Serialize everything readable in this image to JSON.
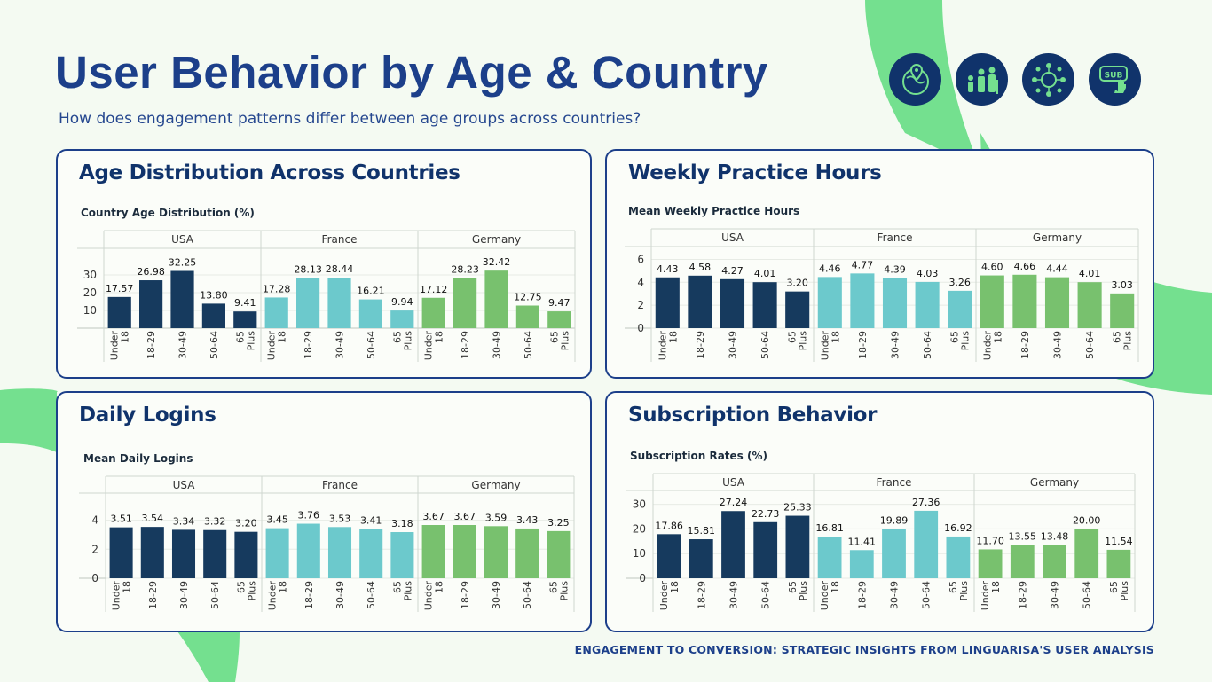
{
  "header": {
    "title": "User Behavior by Age & Country",
    "subtitle": "How does engagement patterns differ between age groups across countries?"
  },
  "icons": [
    "globe-location-icon",
    "family-age-icon",
    "global-network-icon",
    "subscribe-click-icon"
  ],
  "icon_labels": {
    "subscribe": "SUB"
  },
  "footer": "ENGAGEMENT TO CONVERSION: STRATEGIC INSIGHTS FROM LINGUARISA'S USER ANALYSIS",
  "colors": {
    "usa": "#163a5e",
    "france": "#6cc9cc",
    "germany": "#78c16e",
    "accent": "#1c3f8a",
    "decor": "#74e08f"
  },
  "panels": {
    "age": {
      "heading": "Age Distribution Across Countries"
    },
    "practice": {
      "heading": "Weekly Practice Hours"
    },
    "logins": {
      "heading": "Daily Logins"
    },
    "subs": {
      "heading": "Subscription Behavior"
    }
  },
  "chart_data": [
    {
      "id": "age",
      "type": "bar",
      "title": "Country Age Distribution (%)",
      "groups": [
        "USA",
        "France",
        "Germany"
      ],
      "categories": [
        [
          "Under",
          "18"
        ],
        [
          "18-29"
        ],
        [
          "30-49"
        ],
        [
          "50-64"
        ],
        [
          "65",
          "Plus"
        ]
      ],
      "series": [
        {
          "name": "USA",
          "values": [
            17.57,
            26.98,
            32.25,
            13.8,
            9.41
          ]
        },
        {
          "name": "France",
          "values": [
            17.28,
            28.13,
            28.44,
            16.21,
            9.94
          ]
        },
        {
          "name": "Germany",
          "values": [
            17.12,
            28.23,
            32.42,
            12.75,
            9.47
          ]
        }
      ],
      "ylim": [
        0,
        40
      ],
      "yticks": [
        10,
        20,
        30
      ]
    },
    {
      "id": "practice",
      "type": "bar",
      "title": "Mean Weekly Practice Hours",
      "groups": [
        "USA",
        "France",
        "Germany"
      ],
      "categories": [
        [
          "Under",
          "18"
        ],
        [
          "18-29"
        ],
        [
          "30-49"
        ],
        [
          "50-64"
        ],
        [
          "65",
          "Plus"
        ]
      ],
      "series": [
        {
          "name": "USA",
          "values": [
            4.43,
            4.58,
            4.27,
            4.01,
            3.2
          ]
        },
        {
          "name": "France",
          "values": [
            4.46,
            4.77,
            4.39,
            4.03,
            3.26
          ]
        },
        {
          "name": "Germany",
          "values": [
            4.6,
            4.66,
            4.44,
            4.01,
            3.03
          ]
        }
      ],
      "ylim": [
        0,
        6.5
      ],
      "yticks": [
        0,
        2,
        4,
        6
      ]
    },
    {
      "id": "logins",
      "type": "bar",
      "title": "Mean Daily Logins",
      "groups": [
        "USA",
        "France",
        "Germany"
      ],
      "categories": [
        [
          "Under",
          "18"
        ],
        [
          "18-29"
        ],
        [
          "30-49"
        ],
        [
          "50-64"
        ],
        [
          "65",
          "Plus"
        ]
      ],
      "series": [
        {
          "name": "USA",
          "values": [
            3.51,
            3.54,
            3.34,
            3.32,
            3.2
          ]
        },
        {
          "name": "France",
          "values": [
            3.45,
            3.76,
            3.53,
            3.41,
            3.18
          ]
        },
        {
          "name": "Germany",
          "values": [
            3.67,
            3.67,
            3.59,
            3.43,
            3.25
          ]
        }
      ],
      "ylim": [
        0,
        5.2
      ],
      "yticks": [
        0,
        2,
        4
      ]
    },
    {
      "id": "subs",
      "type": "bar",
      "title": "Subscription Rates (%)",
      "groups": [
        "USA",
        "France",
        "Germany"
      ],
      "categories": [
        [
          "Under",
          "18"
        ],
        [
          "18-29"
        ],
        [
          "30-49"
        ],
        [
          "50-64"
        ],
        [
          "65",
          "Plus"
        ]
      ],
      "series": [
        {
          "name": "USA",
          "values": [
            17.86,
            15.81,
            27.24,
            22.73,
            25.33
          ]
        },
        {
          "name": "France",
          "values": [
            16.81,
            11.41,
            19.89,
            27.36,
            16.92
          ]
        },
        {
          "name": "Germany",
          "values": [
            11.7,
            13.55,
            13.48,
            20.0,
            11.54
          ]
        }
      ],
      "ylim": [
        0,
        32
      ],
      "yticks": [
        0,
        10,
        20,
        30
      ]
    }
  ]
}
